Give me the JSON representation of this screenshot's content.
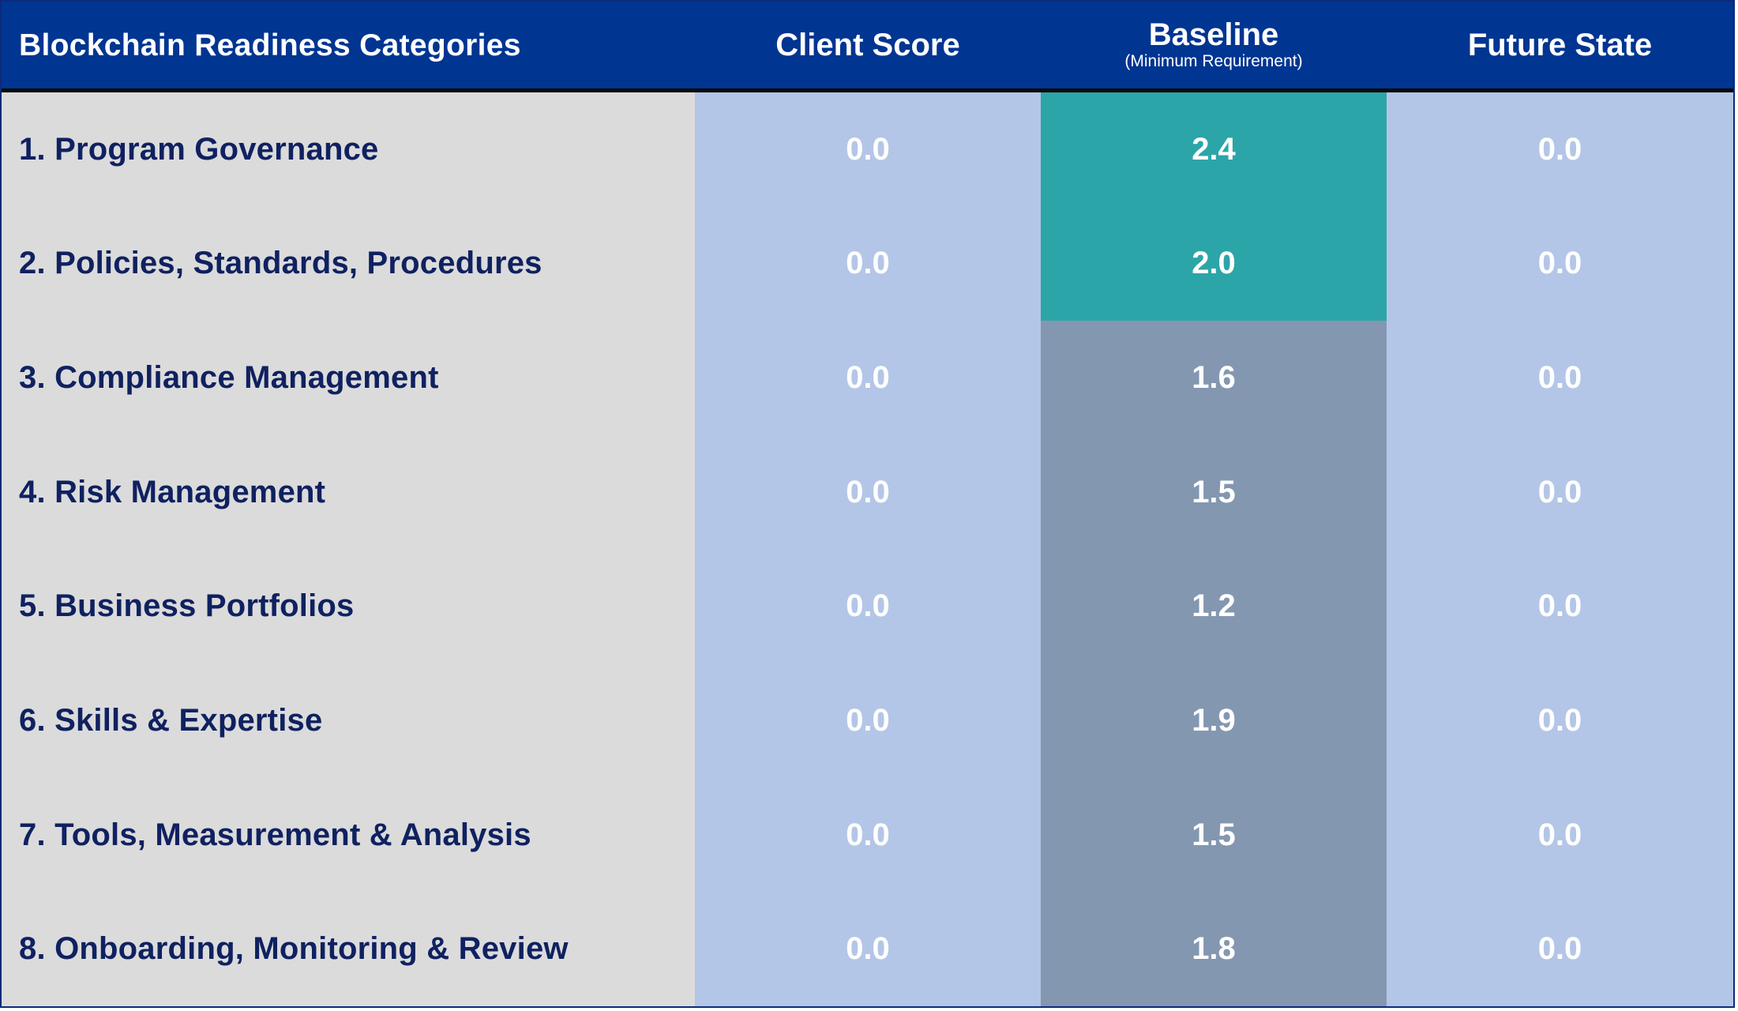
{
  "chart_data": {
    "type": "table",
    "columns": [
      {
        "label": "Blockchain Readiness Categories",
        "sublabel": ""
      },
      {
        "label": "Client Score",
        "sublabel": ""
      },
      {
        "label": "Baseline",
        "sublabel": "(Minimum Requirement)"
      },
      {
        "label": "Future State",
        "sublabel": ""
      }
    ],
    "rows": [
      {
        "category": "1. Program Governance",
        "client": "0.0",
        "baseline": "2.4",
        "future": "0.0",
        "baseline_highlight": true
      },
      {
        "category": "2. Policies, Standards, Procedures",
        "client": "0.0",
        "baseline": "2.0",
        "future": "0.0",
        "baseline_highlight": true
      },
      {
        "category": "3. Compliance Management",
        "client": "0.0",
        "baseline": "1.6",
        "future": "0.0",
        "baseline_highlight": false
      },
      {
        "category": "4. Risk Management",
        "client": "0.0",
        "baseline": "1.5",
        "future": "0.0",
        "baseline_highlight": false
      },
      {
        "category": "5. Business Portfolios",
        "client": "0.0",
        "baseline": "1.2",
        "future": "0.0",
        "baseline_highlight": false
      },
      {
        "category": "6. Skills & Expertise",
        "client": "0.0",
        "baseline": "1.9",
        "future": "0.0",
        "baseline_highlight": false
      },
      {
        "category": "7. Tools, Measurement & Analysis",
        "client": "0.0",
        "baseline": "1.5",
        "future": "0.0",
        "baseline_highlight": false
      },
      {
        "category": "8. Onboarding, Monitoring & Review",
        "client": "0.0",
        "baseline": "1.8",
        "future": "0.0",
        "baseline_highlight": false
      }
    ]
  },
  "colors": {
    "header_bg": "#003591",
    "category_bg": "#dbdbdb",
    "score_bg": "#b4c6e7",
    "baseline_bg": "#8497b0",
    "baseline_highlight_bg": "#2ca5a8",
    "category_text": "#0f2160"
  }
}
